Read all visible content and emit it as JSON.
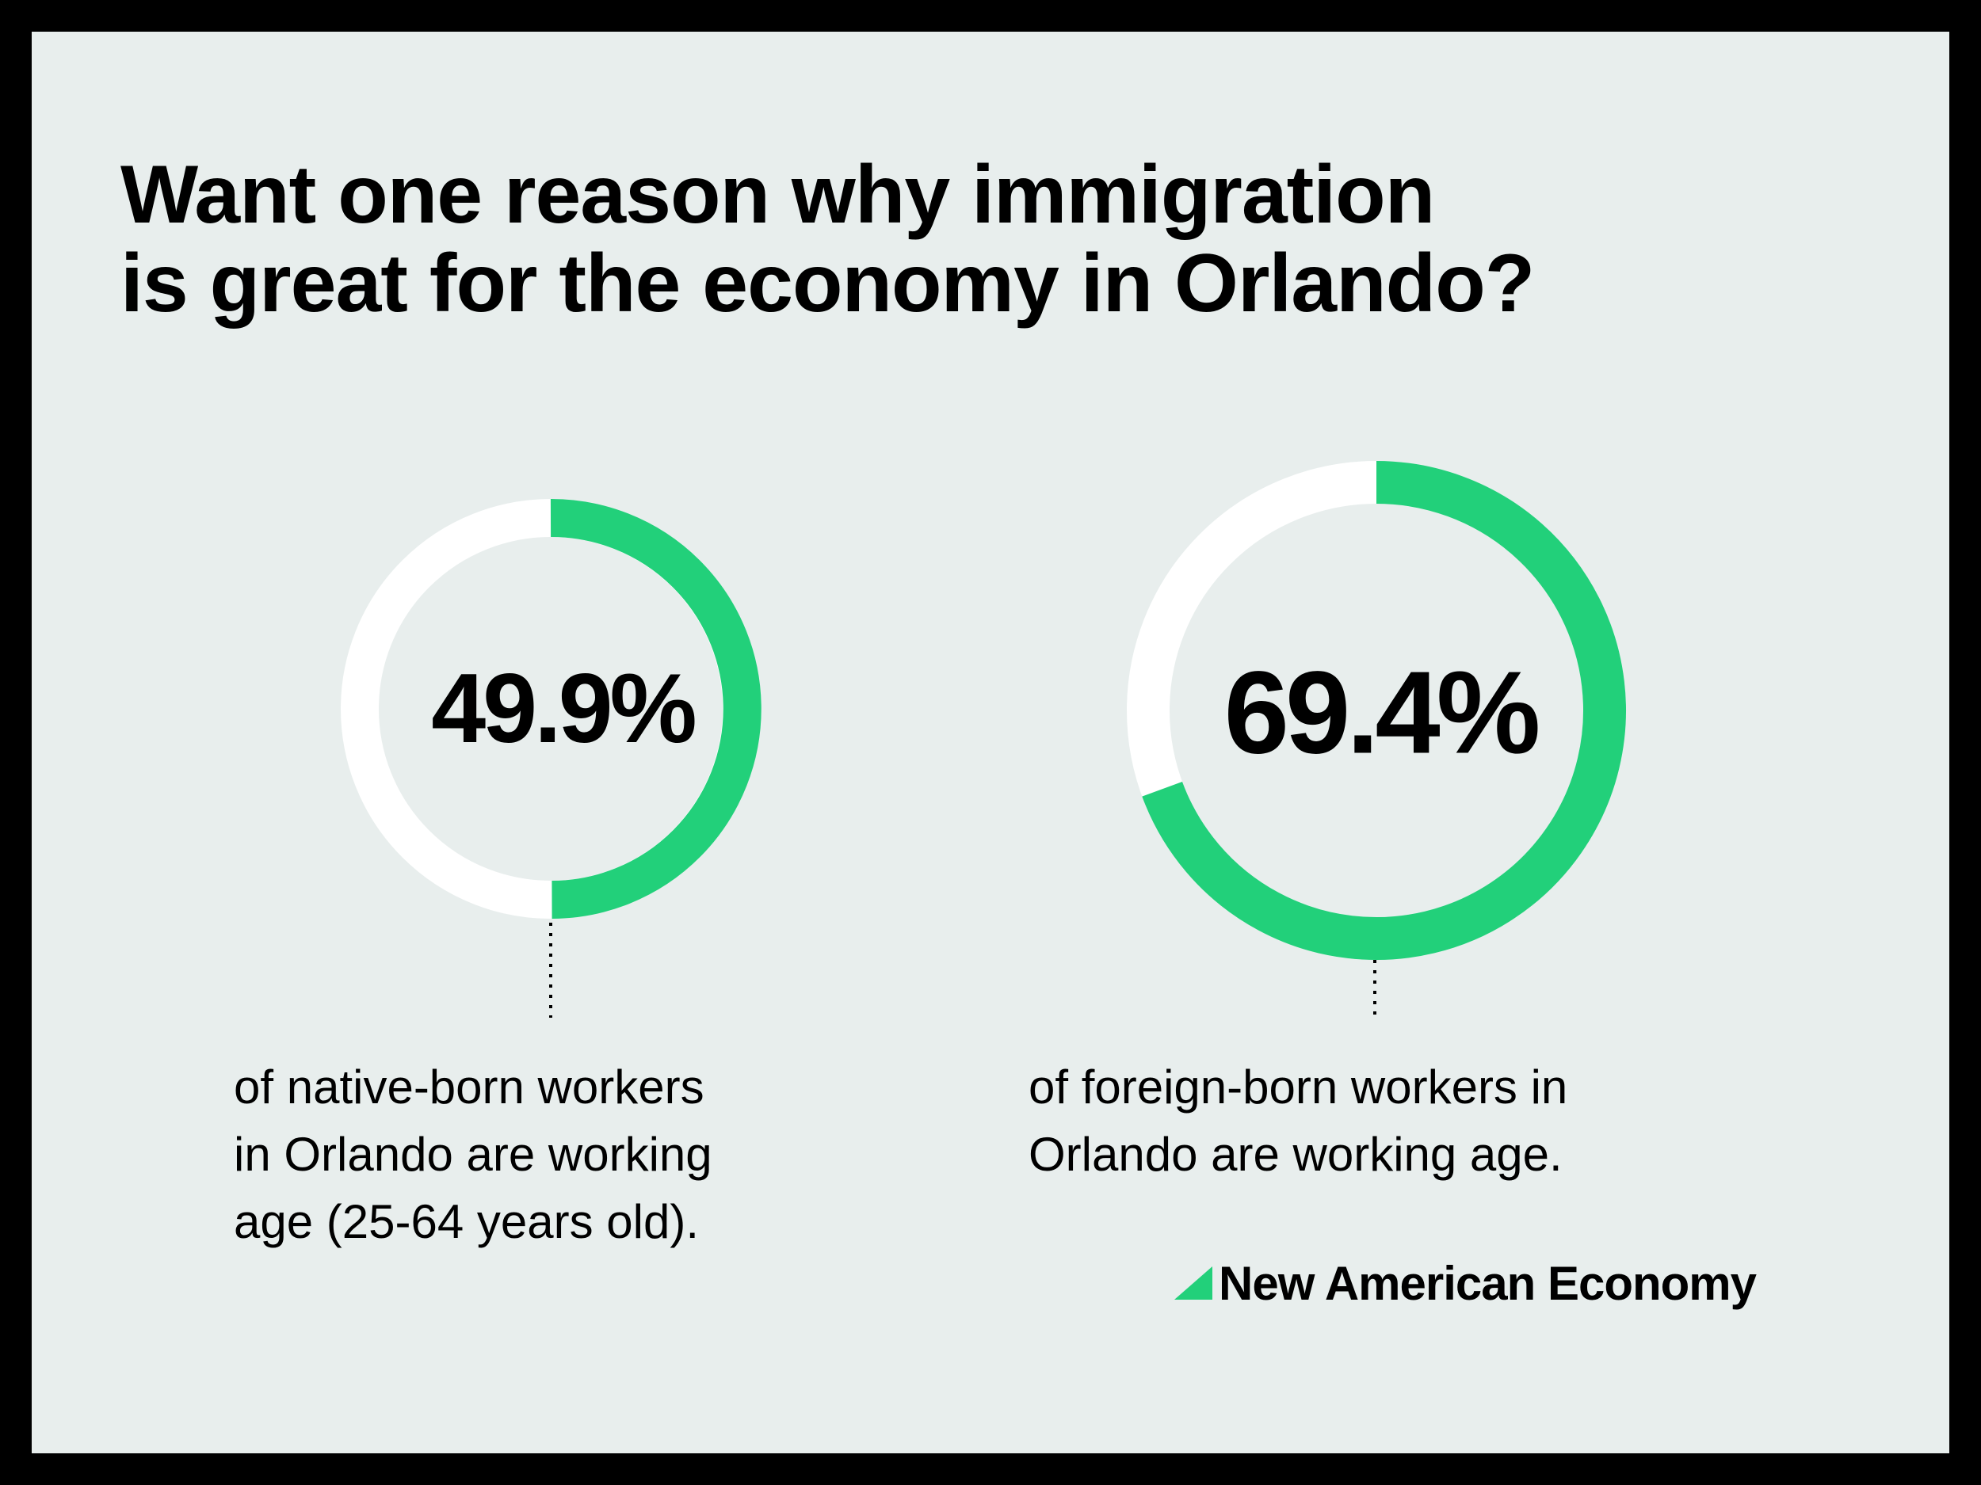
{
  "headline": {
    "line1": "Want one reason why immigration",
    "line2": "is great for the economy in Orlando?"
  },
  "chart_data": [
    {
      "type": "pie",
      "style": "donut",
      "label": "49.9%",
      "value": 49.9,
      "max": 100,
      "caption": [
        "of native-born workers",
        "in Orlando are working",
        "age (25-64 years old)."
      ]
    },
    {
      "type": "pie",
      "style": "donut",
      "label": "69.4%",
      "value": 69.4,
      "max": 100,
      "caption": [
        "of foreign-born workers in",
        "Orlando are working age."
      ]
    }
  ],
  "brand": {
    "name": "New American Economy"
  },
  "colors": {
    "background": "#e8eeed",
    "frame": "#000000",
    "accent": "#22d07a",
    "track": "#ffffff",
    "text": "#000000"
  }
}
